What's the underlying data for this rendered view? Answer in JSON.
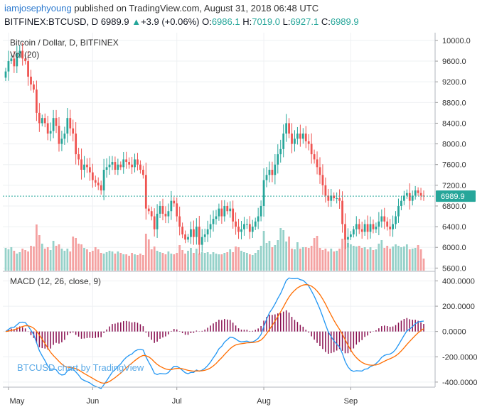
{
  "header": {
    "author": "iamjosephyoung",
    "published_text": "published on TradingView.com, August 31, 2018 06:48 UTC",
    "symbol": "BITFINEX:BTCUSD, D",
    "last": "6989.9",
    "change_arrow": "▲",
    "change": "+3.9 (+0.06%)",
    "o_label": "O:",
    "o_value": "6986.1",
    "h_label": "H:",
    "h_value": "7019.0",
    "l_label": "L:",
    "l_value": "6927.1",
    "c_label": "C:",
    "c_value": "6989.9"
  },
  "chart_data": [
    {
      "type": "candlestick",
      "title": "Bitcoin / Dollar, D, BITFINEX",
      "volume_label": "Vol (20)",
      "ylim": [
        5550,
        10150
      ],
      "y_ticks": [
        "10000.0",
        "9600.0",
        "9200.0",
        "8800.0",
        "8400.0",
        "8000.0",
        "7600.0",
        "7200.0",
        "6800.0",
        "6400.0",
        "6000.0",
        "5600.0"
      ],
      "x_ticks": [
        "May",
        "Jun",
        "Jul",
        "Aug",
        "Sep"
      ],
      "last_price_label": "6989.9",
      "last_price": 6989.9,
      "closes": [
        9400,
        9600,
        9650,
        9500,
        9750,
        9800,
        9650,
        9600,
        9300,
        9150,
        9050,
        8600,
        8400,
        8500,
        8400,
        8200,
        8250,
        8500,
        8350,
        8000,
        8100,
        8200,
        8500,
        8300,
        8200,
        7800,
        7700,
        7500,
        7600,
        7550,
        7450,
        7300,
        7250,
        7200,
        7100,
        7500,
        7550,
        7600,
        7650,
        7500,
        7600,
        7550,
        7700,
        7650,
        7600,
        7550,
        7700,
        7600,
        7500,
        7400,
        6750,
        6700,
        6600,
        6350,
        6650,
        6800,
        6650,
        6600,
        6700,
        6900,
        6850,
        6600,
        6400,
        6250,
        6150,
        6200,
        6350,
        6200,
        6400,
        6050,
        6200,
        6250,
        6350,
        6450,
        6550,
        6600,
        6750,
        6600,
        6800,
        6700,
        6750,
        6500,
        6400,
        6300,
        6350,
        6450,
        6450,
        6300,
        6400,
        6500,
        6600,
        6800,
        7300,
        7400,
        7500,
        7400,
        7600,
        7800,
        7900,
        8200,
        8400,
        8200,
        8000,
        8100,
        8200,
        8100,
        8200,
        8050,
        8000,
        7800,
        7700,
        7550,
        7400,
        7200,
        7000,
        6900,
        7000,
        6950,
        6950,
        6900,
        6450,
        6150,
        6200,
        6250,
        6350,
        6450,
        6350,
        6300,
        6450,
        6300,
        6450,
        6350,
        6400,
        6500,
        6600,
        6500,
        6400,
        6350,
        6450,
        6600,
        6800,
        6900,
        7000,
        7050,
        6900,
        7000,
        7100,
        7050,
        7000,
        6990
      ],
      "volumes": [
        3200,
        3000,
        3300,
        2800,
        2400,
        2600,
        3100,
        2900,
        2700,
        3500,
        3400,
        6500,
        5000,
        3800,
        3100,
        3300,
        2900,
        4200,
        3500,
        3700,
        3100,
        2800,
        3100,
        2700,
        4800,
        4600,
        3800,
        3700,
        3200,
        3000,
        2600,
        2800,
        3300,
        3000,
        2500,
        2400,
        2600,
        2800,
        2700,
        2400,
        2700,
        2500,
        2300,
        2300,
        2100,
        2500,
        2300,
        2200,
        2400,
        2200,
        5200,
        4400,
        3000,
        3400,
        2800,
        2600,
        2500,
        2300,
        2700,
        2400,
        2300,
        2500,
        3600,
        2900,
        2400,
        2800,
        3200,
        2500,
        3100,
        2400,
        2600,
        2500,
        2600,
        2300,
        2600,
        2400,
        2300,
        2300,
        2500,
        2600,
        3000,
        2600,
        3400,
        3300,
        2800,
        2600,
        2500,
        2300,
        2200,
        2500,
        2900,
        3500,
        5600,
        3900,
        4200,
        3300,
        3600,
        4300,
        6000,
        5700,
        4100,
        4800,
        3100,
        3000,
        4000,
        3100,
        3300,
        3300,
        3200,
        3500,
        4600,
        4900,
        3200,
        2900,
        3100,
        2700,
        3100,
        2700,
        2800,
        3100,
        4500,
        4500,
        3900,
        3700,
        3500,
        3400,
        3500,
        3200,
        3300,
        3000,
        3300,
        2900,
        3000,
        3800,
        4300,
        3200,
        3500,
        3100,
        3400,
        3700,
        3500,
        3300,
        3400,
        3700,
        3000,
        3100,
        3200,
        3600,
        3000,
        1700
      ],
      "series": [
        {
          "name": "MACD",
          "color": "#2196f3"
        },
        {
          "name": "Signal",
          "color": "#ff6d00"
        },
        {
          "name": "Histogram",
          "color": "#880e4f"
        }
      ]
    },
    {
      "type": "line",
      "title": "MACD (12, 26, close, 9)",
      "ylim": [
        -440,
        470
      ],
      "y_ticks": [
        "400.0000",
        "200.0000",
        "0.0000",
        "-200.0000",
        "-400.0000"
      ]
    }
  ],
  "watermark": "BTCUSD chart by TradingView",
  "colors": {
    "up": "#26a69a",
    "down": "#ef5350",
    "vol_up": "#95d1c9",
    "vol_down": "#f4a1a1",
    "macd": "#2196f3",
    "signal": "#ff6d00",
    "hist": "#880e4f",
    "price_line": "#26a69a"
  }
}
